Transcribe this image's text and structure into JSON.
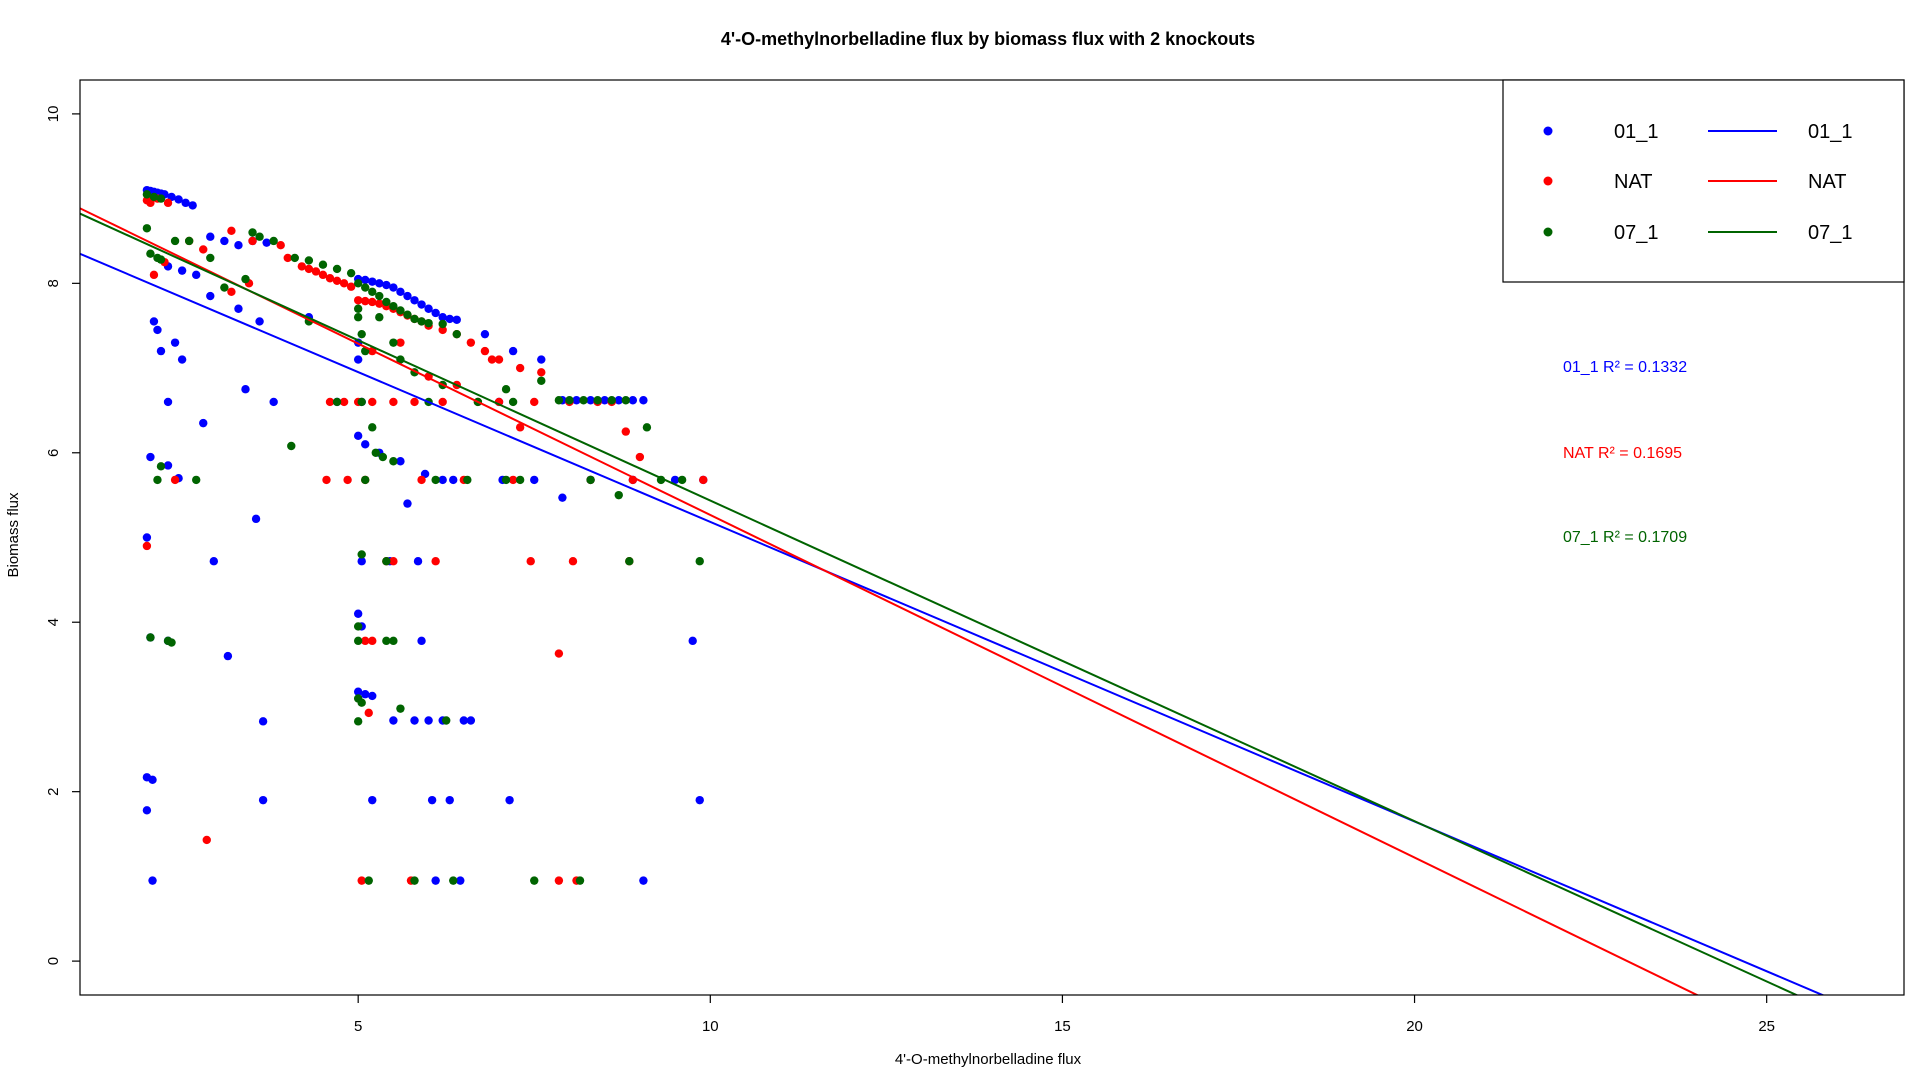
{
  "chart_data": {
    "type": "scatter",
    "title": "4'-O-methylnorbelladine flux by biomass flux with 2 knockouts",
    "xlabel": "4'-O-methylnorbelladine flux",
    "ylabel": "Biomass flux",
    "xlim": [
      1.05,
      26.95
    ],
    "ylim": [
      -0.4,
      10.4
    ],
    "xticks": [
      5,
      10,
      15,
      20,
      25
    ],
    "yticks": [
      0,
      2,
      4,
      6,
      8,
      10
    ],
    "grid": false,
    "legend_position": "top-right",
    "legend": {
      "points": [
        "01_1",
        "NAT",
        "07_1"
      ],
      "lines": [
        "01_1",
        "NAT",
        "07_1"
      ]
    },
    "series": [
      {
        "name": "01_1",
        "color": "#0000ff",
        "r2_label": "01_1  R² = 0.1332",
        "fit": {
          "intercept": 8.72,
          "slope": -0.3536
        },
        "points": [
          [
            2.0,
            9.1
          ],
          [
            2.05,
            9.09
          ],
          [
            2.1,
            9.08
          ],
          [
            2.15,
            9.07
          ],
          [
            2.2,
            9.06
          ],
          [
            2.25,
            9.05
          ],
          [
            2.35,
            9.02
          ],
          [
            2.45,
            8.99
          ],
          [
            2.55,
            8.95
          ],
          [
            2.65,
            8.92
          ],
          [
            2.3,
            8.2
          ],
          [
            2.5,
            8.15
          ],
          [
            2.7,
            8.1
          ],
          [
            2.9,
            8.55
          ],
          [
            3.1,
            8.5
          ],
          [
            3.3,
            8.45
          ],
          [
            3.5,
            8.5
          ],
          [
            3.7,
            8.48
          ],
          [
            2.9,
            7.85
          ],
          [
            3.3,
            7.7
          ],
          [
            3.6,
            7.55
          ],
          [
            2.1,
            7.55
          ],
          [
            2.15,
            7.45
          ],
          [
            2.2,
            7.2
          ],
          [
            2.4,
            7.3
          ],
          [
            2.5,
            7.1
          ],
          [
            2.3,
            6.6
          ],
          [
            2.05,
            5.95
          ],
          [
            2.3,
            5.85
          ],
          [
            2.45,
            5.7
          ],
          [
            2.8,
            6.35
          ],
          [
            3.4,
            6.75
          ],
          [
            3.55,
            5.22
          ],
          [
            3.8,
            6.6
          ],
          [
            2.0,
            5.0
          ],
          [
            2.05,
            3.82
          ],
          [
            2.3,
            3.78
          ],
          [
            2.95,
            4.72
          ],
          [
            3.15,
            3.6
          ],
          [
            3.65,
            2.83
          ],
          [
            3.65,
            1.9
          ],
          [
            2.0,
            2.17
          ],
          [
            2.08,
            2.14
          ],
          [
            2.0,
            1.78
          ],
          [
            2.08,
            0.95
          ],
          [
            4.3,
            7.6
          ],
          [
            4.7,
            6.6
          ],
          [
            5.0,
            8.05
          ],
          [
            5.1,
            8.04
          ],
          [
            5.2,
            8.02
          ],
          [
            5.3,
            8.0
          ],
          [
            5.4,
            7.98
          ],
          [
            5.5,
            7.95
          ],
          [
            5.6,
            7.9
          ],
          [
            5.7,
            7.85
          ],
          [
            5.8,
            7.8
          ],
          [
            5.9,
            7.75
          ],
          [
            6.0,
            7.7
          ],
          [
            6.1,
            7.65
          ],
          [
            6.2,
            7.6
          ],
          [
            6.3,
            7.58
          ],
          [
            6.4,
            7.57
          ],
          [
            5.0,
            7.3
          ],
          [
            5.0,
            7.1
          ],
          [
            5.05,
            6.6
          ],
          [
            5.0,
            6.2
          ],
          [
            5.1,
            6.1
          ],
          [
            5.3,
            6.0
          ],
          [
            5.6,
            5.9
          ],
          [
            5.7,
            5.4
          ],
          [
            5.95,
            5.75
          ],
          [
            5.0,
            4.1
          ],
          [
            5.05,
            3.95
          ],
          [
            5.0,
            3.18
          ],
          [
            5.1,
            3.15
          ],
          [
            5.2,
            3.13
          ],
          [
            5.05,
            4.72
          ],
          [
            5.45,
            4.72
          ],
          [
            5.85,
            4.72
          ],
          [
            5.9,
            3.78
          ],
          [
            5.5,
            2.84
          ],
          [
            5.8,
            2.84
          ],
          [
            6.0,
            2.84
          ],
          [
            6.2,
            2.84
          ],
          [
            6.5,
            2.84
          ],
          [
            6.6,
            2.84
          ],
          [
            5.2,
            1.9
          ],
          [
            6.05,
            1.9
          ],
          [
            6.3,
            1.9
          ],
          [
            7.15,
            1.9
          ],
          [
            6.1,
            0.95
          ],
          [
            6.45,
            0.95
          ],
          [
            9.05,
            0.95
          ],
          [
            6.2,
            5.68
          ],
          [
            6.35,
            5.68
          ],
          [
            7.05,
            5.68
          ],
          [
            7.5,
            5.68
          ],
          [
            8.3,
            5.68
          ],
          [
            8.9,
            5.68
          ],
          [
            9.5,
            5.68
          ],
          [
            9.9,
            5.68
          ],
          [
            7.9,
            5.47
          ],
          [
            6.8,
            7.4
          ],
          [
            7.2,
            7.2
          ],
          [
            7.6,
            7.1
          ],
          [
            7.0,
            6.6
          ],
          [
            7.9,
            6.62
          ],
          [
            8.1,
            6.62
          ],
          [
            8.3,
            6.62
          ],
          [
            8.5,
            6.62
          ],
          [
            8.7,
            6.62
          ],
          [
            8.9,
            6.62
          ],
          [
            9.05,
            6.62
          ],
          [
            9.75,
            3.78
          ],
          [
            9.85,
            1.9
          ]
        ]
      },
      {
        "name": "NAT",
        "color": "#ff0000",
        "r2_label": "NAT  R² = 0.1695",
        "fit": {
          "intercept": 9.31,
          "slope": -0.4044
        },
        "points": [
          [
            2.0,
            8.98
          ],
          [
            2.05,
            8.95
          ],
          [
            2.15,
            9.0
          ],
          [
            2.3,
            8.95
          ],
          [
            2.1,
            8.1
          ],
          [
            2.25,
            8.25
          ],
          [
            2.6,
            8.5
          ],
          [
            2.8,
            8.4
          ],
          [
            3.2,
            8.62
          ],
          [
            3.5,
            8.5
          ],
          [
            3.2,
            7.9
          ],
          [
            3.45,
            8.0
          ],
          [
            3.9,
            8.45
          ],
          [
            4.0,
            8.3
          ],
          [
            4.2,
            8.2
          ],
          [
            4.3,
            8.17
          ],
          [
            4.4,
            8.14
          ],
          [
            4.5,
            8.1
          ],
          [
            4.6,
            8.06
          ],
          [
            4.7,
            8.03
          ],
          [
            4.8,
            8.0
          ],
          [
            4.9,
            7.96
          ],
          [
            5.0,
            7.8
          ],
          [
            5.1,
            7.79
          ],
          [
            5.2,
            7.78
          ],
          [
            5.3,
            7.76
          ],
          [
            5.4,
            7.73
          ],
          [
            5.5,
            7.7
          ],
          [
            5.6,
            7.66
          ],
          [
            5.7,
            7.62
          ],
          [
            5.8,
            7.58
          ],
          [
            5.9,
            7.55
          ],
          [
            6.0,
            7.5
          ],
          [
            6.2,
            7.45
          ],
          [
            6.4,
            7.4
          ],
          [
            6.6,
            7.3
          ],
          [
            6.8,
            7.2
          ],
          [
            7.0,
            7.1
          ],
          [
            7.3,
            7.0
          ],
          [
            7.6,
            6.95
          ],
          [
            4.6,
            6.6
          ],
          [
            4.8,
            6.6
          ],
          [
            5.0,
            6.6
          ],
          [
            5.2,
            6.6
          ],
          [
            5.5,
            6.6
          ],
          [
            5.8,
            6.6
          ],
          [
            6.2,
            6.6
          ],
          [
            6.7,
            6.6
          ],
          [
            7.0,
            6.6
          ],
          [
            7.5,
            6.6
          ],
          [
            8.0,
            6.6
          ],
          [
            8.4,
            6.6
          ],
          [
            7.3,
            6.3
          ],
          [
            8.8,
            6.25
          ],
          [
            8.6,
            6.6
          ],
          [
            5.2,
            7.2
          ],
          [
            5.6,
            7.3
          ],
          [
            6.0,
            6.9
          ],
          [
            6.4,
            6.8
          ],
          [
            6.9,
            7.1
          ],
          [
            2.0,
            4.9
          ],
          [
            2.4,
            5.68
          ],
          [
            4.55,
            5.68
          ],
          [
            4.85,
            5.68
          ],
          [
            5.1,
            5.68
          ],
          [
            5.9,
            5.68
          ],
          [
            6.5,
            5.68
          ],
          [
            7.2,
            5.68
          ],
          [
            8.3,
            5.68
          ],
          [
            8.9,
            5.68
          ],
          [
            9.0,
            5.95
          ],
          [
            9.9,
            5.68
          ],
          [
            5.4,
            4.72
          ],
          [
            5.5,
            4.72
          ],
          [
            6.1,
            4.72
          ],
          [
            7.45,
            4.72
          ],
          [
            8.05,
            4.72
          ],
          [
            8.85,
            4.72
          ],
          [
            5.1,
            3.78
          ],
          [
            5.2,
            3.78
          ],
          [
            7.85,
            3.63
          ],
          [
            5.15,
            2.93
          ],
          [
            2.85,
            1.43
          ],
          [
            5.05,
            0.95
          ],
          [
            5.75,
            0.95
          ],
          [
            7.85,
            0.95
          ],
          [
            8.1,
            0.95
          ]
        ]
      },
      {
        "name": "07_1",
        "color": "#006400",
        "r2_label": "07_1  R² = 0.1709",
        "fit": {
          "intercept": 9.22,
          "slope": -0.3784
        },
        "points": [
          [
            2.0,
            9.05
          ],
          [
            2.1,
            9.02
          ],
          [
            2.2,
            9.0
          ],
          [
            2.0,
            8.65
          ],
          [
            2.05,
            8.35
          ],
          [
            2.15,
            8.3
          ],
          [
            2.2,
            8.28
          ],
          [
            2.4,
            8.5
          ],
          [
            2.6,
            8.5
          ],
          [
            2.9,
            8.3
          ],
          [
            3.1,
            7.95
          ],
          [
            3.4,
            8.05
          ],
          [
            3.5,
            8.6
          ],
          [
            3.6,
            8.55
          ],
          [
            3.8,
            8.5
          ],
          [
            4.1,
            8.3
          ],
          [
            4.3,
            8.27
          ],
          [
            4.5,
            8.22
          ],
          [
            4.7,
            8.17
          ],
          [
            4.9,
            8.12
          ],
          [
            5.0,
            8.0
          ],
          [
            5.1,
            7.95
          ],
          [
            5.2,
            7.9
          ],
          [
            5.3,
            7.85
          ],
          [
            5.4,
            7.78
          ],
          [
            5.5,
            7.73
          ],
          [
            5.6,
            7.68
          ],
          [
            5.7,
            7.63
          ],
          [
            5.8,
            7.58
          ],
          [
            5.9,
            7.55
          ],
          [
            6.0,
            7.53
          ],
          [
            6.2,
            7.52
          ],
          [
            6.4,
            7.4
          ],
          [
            5.0,
            7.6
          ],
          [
            5.05,
            7.4
          ],
          [
            5.1,
            7.2
          ],
          [
            5.0,
            7.7
          ],
          [
            5.3,
            7.6
          ],
          [
            5.5,
            7.3
          ],
          [
            5.6,
            7.1
          ],
          [
            5.8,
            6.95
          ],
          [
            6.2,
            6.8
          ],
          [
            4.3,
            7.55
          ],
          [
            4.7,
            6.6
          ],
          [
            5.05,
            6.6
          ],
          [
            5.2,
            6.3
          ],
          [
            5.25,
            6.0
          ],
          [
            5.35,
            5.95
          ],
          [
            5.5,
            5.9
          ],
          [
            6.0,
            6.6
          ],
          [
            6.7,
            6.6
          ],
          [
            7.1,
            6.75
          ],
          [
            7.2,
            6.6
          ],
          [
            7.6,
            6.85
          ],
          [
            7.85,
            6.62
          ],
          [
            8.0,
            6.62
          ],
          [
            8.2,
            6.62
          ],
          [
            8.4,
            6.62
          ],
          [
            8.6,
            6.62
          ],
          [
            8.8,
            6.62
          ],
          [
            9.1,
            6.3
          ],
          [
            4.05,
            6.08
          ],
          [
            2.2,
            5.84
          ],
          [
            2.15,
            5.68
          ],
          [
            2.7,
            5.68
          ],
          [
            5.1,
            5.68
          ],
          [
            6.1,
            5.68
          ],
          [
            6.55,
            5.68
          ],
          [
            7.1,
            5.68
          ],
          [
            7.3,
            5.68
          ],
          [
            8.3,
            5.68
          ],
          [
            8.7,
            5.5
          ],
          [
            9.3,
            5.68
          ],
          [
            9.6,
            5.68
          ],
          [
            5.05,
            4.8
          ],
          [
            5.4,
            4.72
          ],
          [
            8.85,
            4.72
          ],
          [
            9.85,
            4.72
          ],
          [
            2.05,
            3.82
          ],
          [
            2.3,
            3.78
          ],
          [
            2.35,
            3.76
          ],
          [
            5.0,
            3.95
          ],
          [
            5.0,
            3.78
          ],
          [
            5.4,
            3.78
          ],
          [
            5.5,
            3.78
          ],
          [
            5.0,
            3.1
          ],
          [
            5.05,
            3.05
          ],
          [
            5.0,
            2.83
          ],
          [
            5.6,
            2.98
          ],
          [
            6.25,
            2.84
          ],
          [
            5.15,
            0.95
          ],
          [
            5.8,
            0.95
          ],
          [
            6.35,
            0.95
          ],
          [
            7.5,
            0.95
          ],
          [
            8.15,
            0.95
          ]
        ]
      }
    ]
  }
}
